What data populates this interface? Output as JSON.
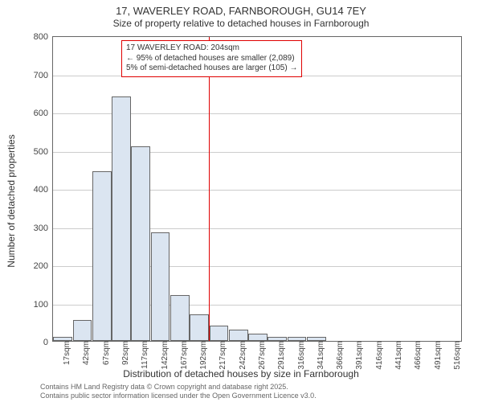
{
  "chart": {
    "type": "histogram",
    "title_main": "17, WAVERLEY ROAD, FARNBOROUGH, GU14 7EY",
    "title_sub": "Size of property relative to detached houses in Farnborough",
    "ylabel": "Number of detached properties",
    "xlabel": "Distribution of detached houses by size in Farnborough",
    "ylim": [
      0,
      800
    ],
    "ytick_step": 100,
    "yticks": [
      0,
      100,
      200,
      300,
      400,
      500,
      600,
      700,
      800
    ],
    "x_categories": [
      "17sqm",
      "42sqm",
      "67sqm",
      "92sqm",
      "117sqm",
      "142sqm",
      "167sqm",
      "192sqm",
      "217sqm",
      "242sqm",
      "267sqm",
      "291sqm",
      "316sqm",
      "341sqm",
      "366sqm",
      "391sqm",
      "416sqm",
      "441sqm",
      "466sqm",
      "491sqm",
      "516sqm"
    ],
    "values": [
      10,
      55,
      445,
      640,
      510,
      285,
      120,
      70,
      40,
      30,
      20,
      10,
      10,
      10,
      0,
      0,
      0,
      0,
      0,
      0,
      0
    ],
    "bar_color": "#dbe5f1",
    "bar_border": "#666666",
    "background_color": "#ffffff",
    "grid_color": "#cccccc",
    "border_color": "#666666",
    "reference": {
      "position_sqm": 204,
      "color": "#e00000"
    },
    "annotation": {
      "line1": "17 WAVERLEY ROAD: 204sqm",
      "line2": "← 95% of detached houses are smaller (2,089)",
      "line3": "5% of semi-detached houses are larger (105) →",
      "border_color": "#e00000",
      "bg_color": "#ffffff"
    },
    "credits": {
      "line1": "Contains HM Land Registry data © Crown copyright and database right 2025.",
      "line2": "Contains public sector information licensed under the Open Government Licence v3.0."
    },
    "title_fontsize": 13,
    "subtitle_fontsize": 12,
    "label_fontsize": 12,
    "tick_fontsize": 11,
    "xtick_fontsize": 10,
    "credit_fontsize": 9
  }
}
